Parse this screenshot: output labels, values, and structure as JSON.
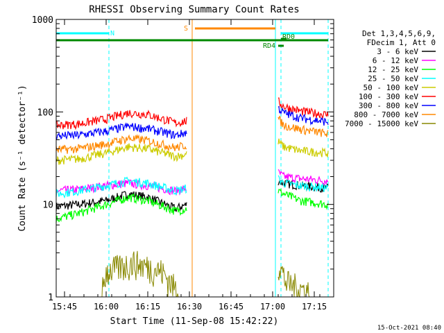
{
  "chart_data": {
    "type": "line",
    "title": "RHESSI Observing Summary Count Rates",
    "xlabel": "Start Time (11-Sep-08 15:42:22)",
    "ylabel": "Count Rate (s⁻¹ detector⁻¹)",
    "y_scale": "log",
    "ylim": [
      1,
      1000
    ],
    "xlim": [
      "15:42",
      "17:22"
    ],
    "x_ticks": [
      "15:45",
      "16:00",
      "16:15",
      "16:30",
      "16:45",
      "17:00",
      "17:15"
    ],
    "y_ticks": [
      "1",
      "10",
      "100",
      "1000"
    ],
    "grid": false,
    "legend_position": "right",
    "legend_header": [
      "Det 1,3,4,5,6,9,",
      "FDecim 1, Att 0"
    ],
    "footer_date": "15-Oct-2021 08:40",
    "series": [
      {
        "name": "3 - 6 keV",
        "color": "#000000",
        "x": [
          "15:42",
          "15:50",
          "16:00",
          "16:08",
          "16:15",
          "16:25",
          "16:29",
          "16:30",
          "17:02",
          "17:04",
          "17:10",
          "17:20"
        ],
        "y": [
          9.5,
          10,
          11,
          13,
          12,
          9,
          10,
          null,
          18,
          17,
          16,
          15
        ]
      },
      {
        "name": "6 - 12 keV",
        "color": "#ff00ff",
        "x": [
          "15:42",
          "15:50",
          "16:00",
          "16:08",
          "16:15",
          "16:25",
          "16:29",
          "16:30",
          "17:02",
          "17:04",
          "17:10",
          "17:20"
        ],
        "y": [
          14,
          14.5,
          16,
          17,
          16,
          14,
          15,
          null,
          22,
          20,
          19,
          18
        ]
      },
      {
        "name": "12 - 25 keV",
        "color": "#00ff00",
        "x": [
          "15:42",
          "15:50",
          "16:00",
          "16:08",
          "16:15",
          "16:25",
          "16:29",
          "16:30",
          "17:02",
          "17:04",
          "17:10",
          "17:20"
        ],
        "y": [
          7,
          8,
          10,
          12,
          11,
          8.5,
          9,
          null,
          14,
          13,
          11,
          10
        ]
      },
      {
        "name": "25 - 50 keV",
        "color": "#00ffff",
        "x": [
          "15:42",
          "15:50",
          "16:00",
          "16:08",
          "16:15",
          "16:25",
          "16:29",
          "16:30",
          "17:02",
          "17:04",
          "17:10",
          "17:20"
        ],
        "y": [
          13,
          14,
          16,
          18,
          17,
          14,
          15,
          null,
          19,
          17,
          16,
          15
        ]
      },
      {
        "name": "50 - 100 keV",
        "color": "#cccc00",
        "x": [
          "15:42",
          "15:50",
          "16:00",
          "16:08",
          "16:15",
          "16:25",
          "16:29",
          "16:30",
          "17:02",
          "17:04",
          "17:10",
          "17:20"
        ],
        "y": [
          30,
          31,
          36,
          42,
          40,
          33,
          35,
          null,
          48,
          42,
          38,
          36
        ]
      },
      {
        "name": "100 - 300 keV",
        "color": "#ff0000",
        "x": [
          "15:42",
          "15:50",
          "16:00",
          "16:08",
          "16:15",
          "16:25",
          "16:29",
          "16:30",
          "17:02",
          "17:04",
          "17:10",
          "17:20"
        ],
        "y": [
          72,
          74,
          84,
          98,
          94,
          76,
          80,
          null,
          130,
          115,
          102,
          93
        ]
      },
      {
        "name": "300 - 800 keV",
        "color": "#0000ff",
        "x": [
          "15:42",
          "15:50",
          "16:00",
          "16:08",
          "16:15",
          "16:25",
          "16:29",
          "16:30",
          "17:02",
          "17:04",
          "17:10",
          "17:20"
        ],
        "y": [
          55,
          56,
          62,
          70,
          66,
          56,
          60,
          null,
          110,
          98,
          86,
          78
        ]
      },
      {
        "name": "800 - 7000 keV",
        "color": "#ff8800",
        "x": [
          "15:42",
          "15:50",
          "16:00",
          "16:08",
          "16:15",
          "16:25",
          "16:29",
          "16:30",
          "17:02",
          "17:04",
          "17:10",
          "17:20"
        ],
        "y": [
          39,
          40,
          45,
          52,
          49,
          41,
          44,
          null,
          85,
          72,
          65,
          58
        ]
      },
      {
        "name": "7000 - 15000 keV",
        "color": "#888800",
        "x": [
          "15:42",
          "15:58",
          "16:00",
          "16:10",
          "16:20",
          "16:28",
          "16:30",
          "17:02",
          "17:05",
          "17:20"
        ],
        "y": [
          1,
          1,
          2,
          2.5,
          2,
          1,
          null,
          2.5,
          1.5,
          1
        ]
      }
    ],
    "flag_bars": [
      {
        "label": "N",
        "color": "#00ffff",
        "start": "15:42",
        "end": "16:01",
        "level": 0
      },
      {
        "label": "N",
        "color": "#00ffff",
        "start": "17:03",
        "end": "17:20",
        "level": 0
      },
      {
        "label": "S",
        "color": "#ff8800",
        "start": "16:32",
        "end": "17:01",
        "level": 1
      },
      {
        "label": "",
        "color": "#008800",
        "start": "15:42",
        "end": "17:20",
        "level": 2
      },
      {
        "label": "RD0",
        "color": "#008800",
        "start": "17:03",
        "end": "17:05",
        "level": 3
      },
      {
        "label": "RD4",
        "color": "#008800",
        "start": "17:02",
        "end": "17:04",
        "level": 4
      }
    ],
    "vlines": [
      {
        "time": "15:42",
        "color": "#00ffff",
        "style": "dashed"
      },
      {
        "time": "16:01",
        "color": "#00ffff",
        "style": "dashed"
      },
      {
        "time": "17:03",
        "color": "#00ffff",
        "style": "dashed"
      },
      {
        "time": "17:20",
        "color": "#00ffff",
        "style": "dashed"
      },
      {
        "time": "16:31",
        "color": "#ff8800",
        "style": "solid"
      },
      {
        "time": "17:01",
        "color": "#00ffff",
        "style": "solid"
      }
    ]
  }
}
